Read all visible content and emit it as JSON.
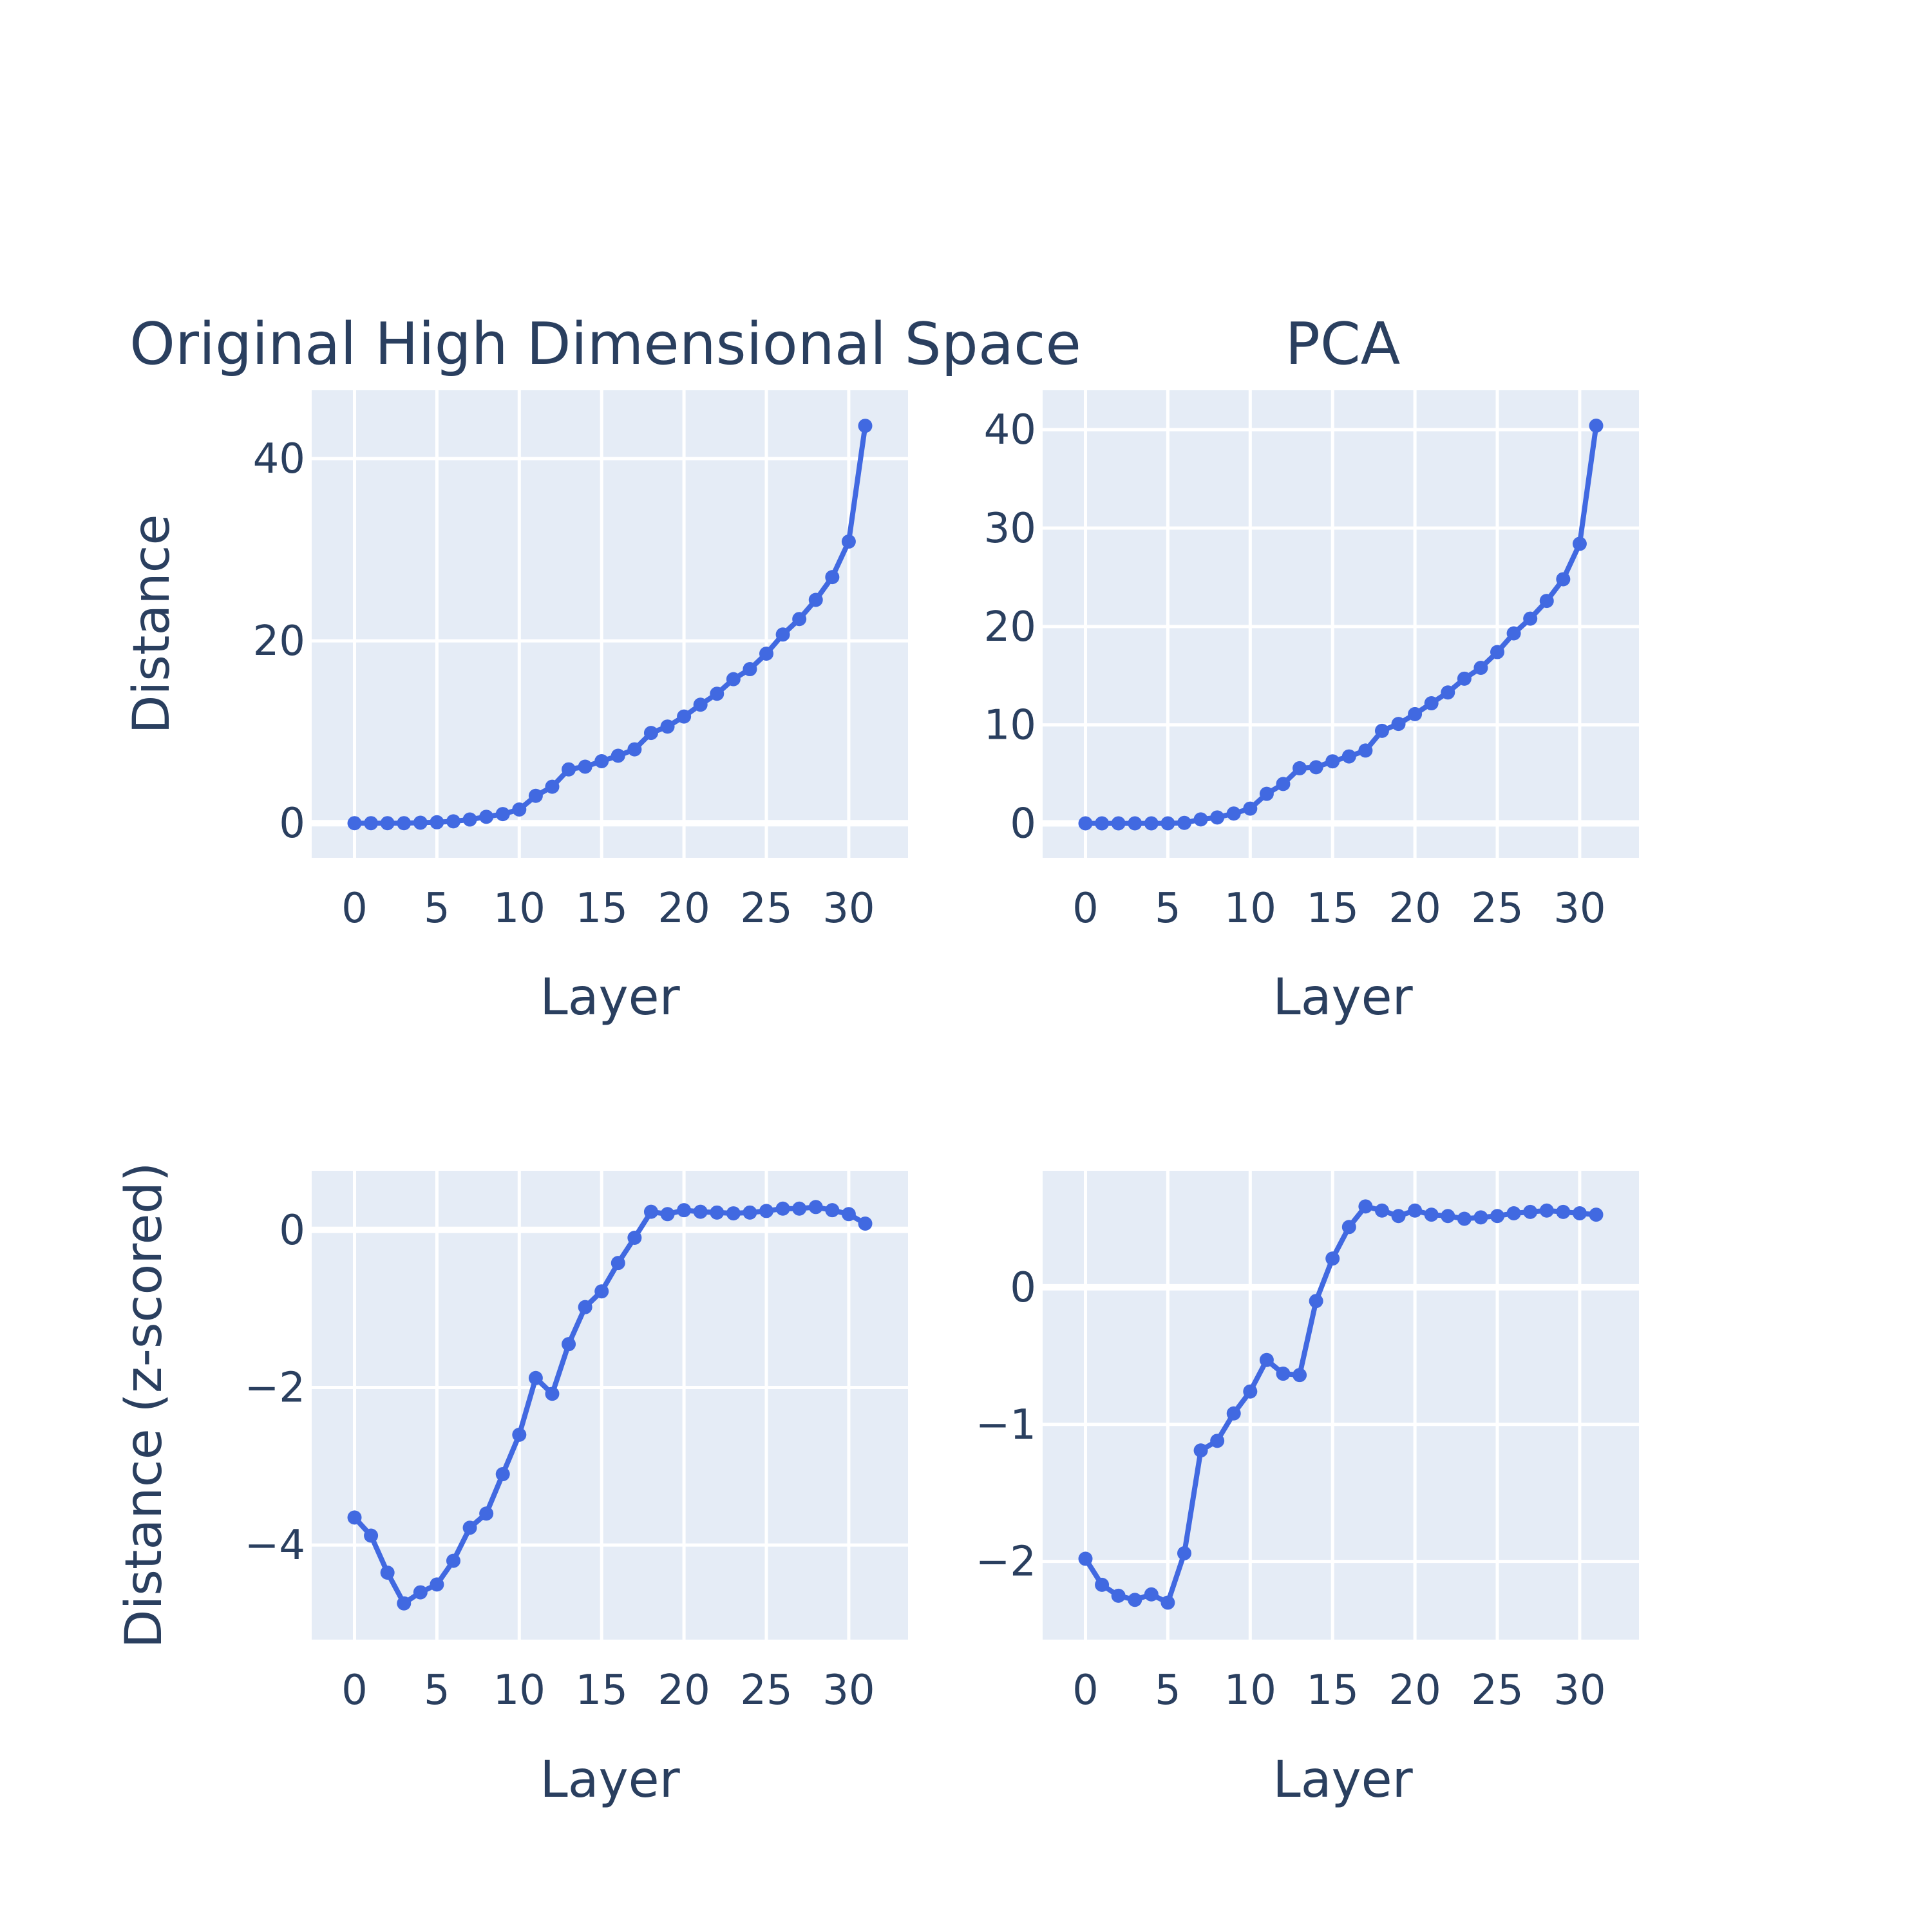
{
  "chart_data": [
    {
      "type": "line",
      "title": "Original High Dimensional Space",
      "xlabel": "Layer",
      "ylabel": "Distance",
      "xlim": [
        -2.6,
        33.6
      ],
      "ylim": [
        -3.8,
        47.5
      ],
      "xticks": [
        0,
        5,
        10,
        15,
        20,
        25,
        30
      ],
      "yticks": [
        0,
        20,
        40
      ],
      "ytick_labels": [
        "0",
        "20",
        "40"
      ],
      "grid": true,
      "legend": "none",
      "color": "#4169e1",
      "x": [
        0,
        1,
        2,
        3,
        4,
        5,
        6,
        7,
        8,
        9,
        10,
        11,
        12,
        13,
        14,
        15,
        16,
        17,
        18,
        19,
        20,
        21,
        22,
        23,
        24,
        25,
        26,
        27,
        28,
        29,
        30,
        31
      ],
      "values": [
        0.0,
        0.0,
        0.0,
        0.0,
        0.05,
        0.1,
        0.2,
        0.4,
        0.7,
        1.0,
        1.5,
        3.0,
        4.0,
        5.9,
        6.2,
        6.8,
        7.4,
        8.1,
        9.9,
        10.6,
        11.7,
        13.0,
        14.2,
        15.8,
        16.9,
        18.6,
        20.7,
        22.4,
        24.5,
        27.0,
        30.9,
        43.6
      ]
    },
    {
      "type": "line",
      "title": "PCA",
      "xlabel": "Layer",
      "ylabel": "",
      "xlim": [
        -2.6,
        33.6
      ],
      "ylim": [
        -3.5,
        44.0
      ],
      "xticks": [
        0,
        5,
        10,
        15,
        20,
        25,
        30
      ],
      "yticks": [
        0,
        10,
        20,
        30,
        40
      ],
      "ytick_labels": [
        "0",
        "10",
        "20",
        "30",
        "40"
      ],
      "grid": true,
      "legend": "none",
      "color": "#4169e1",
      "x": [
        0,
        1,
        2,
        3,
        4,
        5,
        6,
        7,
        8,
        9,
        10,
        11,
        12,
        13,
        14,
        15,
        16,
        17,
        18,
        19,
        20,
        21,
        22,
        23,
        24,
        25,
        26,
        27,
        28,
        29,
        30,
        31
      ],
      "values": [
        0.0,
        0.0,
        0.0,
        0.0,
        0.0,
        0.0,
        0.05,
        0.4,
        0.6,
        1.0,
        1.5,
        3.0,
        4.0,
        5.6,
        5.7,
        6.3,
        6.8,
        7.4,
        9.4,
        10.1,
        11.1,
        12.2,
        13.3,
        14.7,
        15.8,
        17.4,
        19.3,
        20.8,
        22.6,
        24.8,
        28.4,
        40.4
      ]
    },
    {
      "type": "line",
      "title": "",
      "xlabel": "Layer",
      "ylabel": "Distance (z-scored)",
      "xlim": [
        -2.6,
        33.6
      ],
      "ylim": [
        -5.2,
        0.75
      ],
      "xticks": [
        0,
        5,
        10,
        15,
        20,
        25,
        30
      ],
      "yticks": [
        -4,
        -2,
        0
      ],
      "ytick_labels": [
        "−4",
        "−2",
        "0"
      ],
      "grid": true,
      "legend": "none",
      "color": "#4169e1",
      "x": [
        0,
        1,
        2,
        3,
        4,
        5,
        6,
        7,
        8,
        9,
        10,
        11,
        12,
        13,
        14,
        15,
        16,
        17,
        18,
        19,
        20,
        21,
        22,
        23,
        24,
        25,
        26,
        27,
        28,
        29,
        30,
        31
      ],
      "values": [
        -3.65,
        -3.88,
        -4.35,
        -4.74,
        -4.6,
        -4.5,
        -4.2,
        -3.78,
        -3.6,
        -3.1,
        -2.6,
        -1.88,
        -2.08,
        -1.45,
        -0.98,
        -0.78,
        -0.42,
        -0.1,
        0.23,
        0.2,
        0.25,
        0.23,
        0.22,
        0.21,
        0.22,
        0.24,
        0.27,
        0.27,
        0.29,
        0.25,
        0.2,
        0.08
      ]
    },
    {
      "type": "line",
      "title": "",
      "xlabel": "Layer",
      "ylabel": "",
      "xlim": [
        -2.6,
        33.6
      ],
      "ylim": [
        -2.57,
        0.85
      ],
      "xticks": [
        0,
        5,
        10,
        15,
        20,
        25,
        30
      ],
      "yticks": [
        -2,
        -1,
        0
      ],
      "ytick_labels": [
        "−2",
        "−1",
        "0"
      ],
      "grid": true,
      "legend": "none",
      "color": "#4169e1",
      "x": [
        0,
        1,
        2,
        3,
        4,
        5,
        6,
        7,
        8,
        9,
        10,
        11,
        12,
        13,
        14,
        15,
        16,
        17,
        18,
        19,
        20,
        21,
        22,
        23,
        24,
        25,
        26,
        27,
        28,
        29,
        30,
        31
      ],
      "values": [
        -1.98,
        -2.17,
        -2.25,
        -2.28,
        -2.24,
        -2.3,
        -1.94,
        -1.19,
        -1.12,
        -0.92,
        -0.76,
        -0.53,
        -0.63,
        -0.64,
        -0.1,
        0.21,
        0.44,
        0.59,
        0.56,
        0.52,
        0.56,
        0.53,
        0.52,
        0.5,
        0.51,
        0.52,
        0.54,
        0.55,
        0.56,
        0.55,
        0.54,
        0.53
      ]
    }
  ]
}
